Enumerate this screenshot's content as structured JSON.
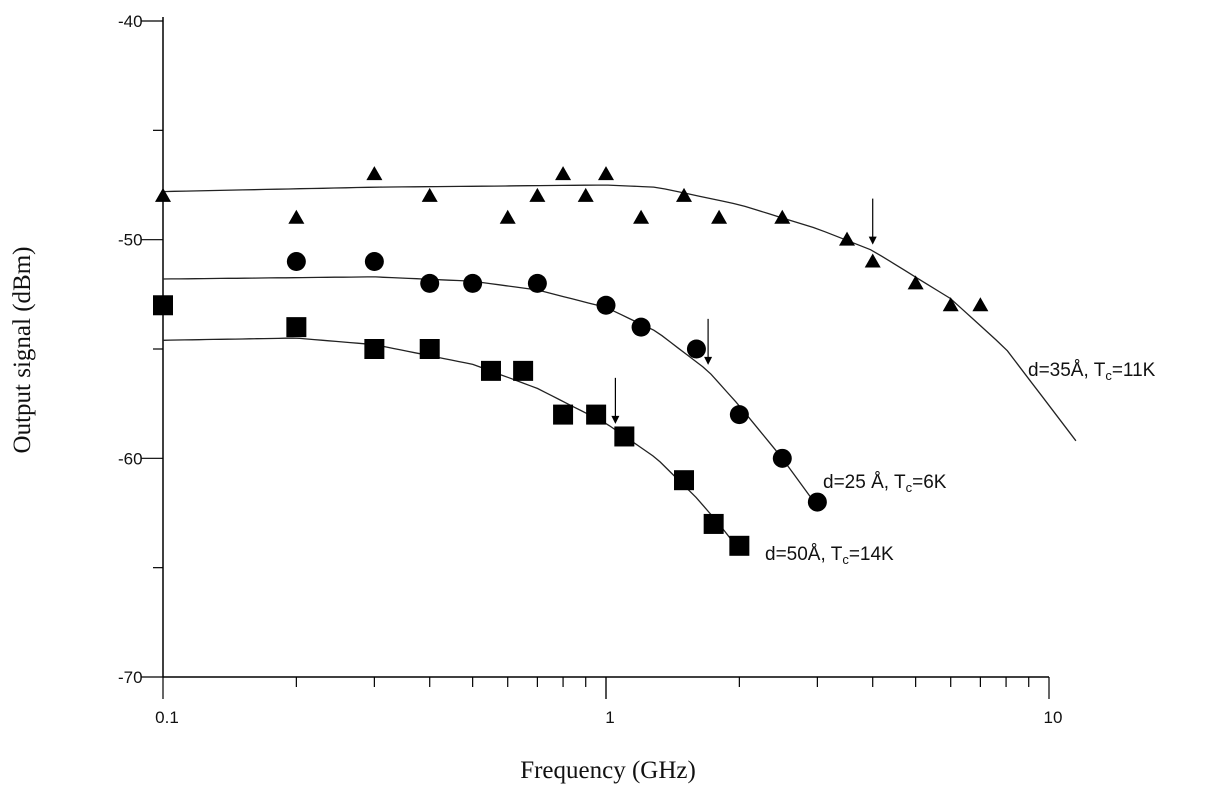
{
  "chart_data": {
    "type": "scatter",
    "title": "",
    "xlabel": "Frequency (GHz)",
    "ylabel": "Output signal (dBm)",
    "xscale": "log",
    "xlim": [
      0.1,
      10
    ],
    "ylim": [
      -70,
      -40
    ],
    "x_ticks": [
      {
        "value": 0.1,
        "label": "0.1"
      },
      {
        "value": 1,
        "label": "1"
      },
      {
        "value": 10,
        "label": "10"
      }
    ],
    "y_ticks": [
      {
        "value": -40,
        "label": "-40"
      },
      {
        "value": -50,
        "label": "-50"
      },
      {
        "value": -60,
        "label": "-60"
      },
      {
        "value": -70,
        "label": "-70"
      }
    ],
    "grid": false,
    "series": [
      {
        "name": "d=35Å, Tc=11K",
        "marker": "triangle",
        "color": "#000000",
        "x": [
          0.1,
          0.2,
          0.3,
          0.4,
          0.6,
          0.7,
          0.8,
          0.9,
          1.0,
          1.2,
          1.5,
          1.8,
          2.5,
          3.5,
          4.0,
          5.0,
          6.0,
          7.0
        ],
        "y": [
          -48,
          -49,
          -47,
          -48,
          -49,
          -48,
          -47,
          -48,
          -47,
          -49,
          -48,
          -49,
          -49,
          -50,
          -51,
          -52,
          -53,
          -53
        ],
        "fit": {
          "x": [
            0.1,
            0.3,
            1.0,
            1.3,
            2.0,
            3.0,
            4.0,
            6.0,
            8.0,
            11.5
          ],
          "y": [
            -47.8,
            -47.6,
            -47.5,
            -47.6,
            -48.4,
            -49.5,
            -50.5,
            -52.7,
            -55.0,
            -59.2
          ]
        },
        "cutoff_marker_x": 4.0
      },
      {
        "name": "d=25Å, Tc=6K",
        "marker": "circle",
        "color": "#000000",
        "x": [
          0.2,
          0.3,
          0.4,
          0.5,
          0.7,
          1.0,
          1.2,
          1.6,
          2.0,
          2.5,
          3.0
        ],
        "y": [
          -51,
          -51,
          -52,
          -52,
          -52,
          -53,
          -54,
          -55,
          -58,
          -60,
          -62
        ],
        "fit": {
          "x": [
            0.1,
            0.3,
            0.5,
            0.7,
            1.0,
            1.3,
            1.7,
            2.0,
            2.5,
            3.0
          ],
          "y": [
            -51.8,
            -51.7,
            -51.9,
            -52.3,
            -53.1,
            -54.2,
            -56.0,
            -57.6,
            -60.0,
            -62.2
          ]
        },
        "cutoff_marker_x": 1.7
      },
      {
        "name": "d=50Å, Tc=14K",
        "marker": "square",
        "color": "#000000",
        "x": [
          0.1,
          0.2,
          0.3,
          0.4,
          0.55,
          0.65,
          0.8,
          0.95,
          1.1,
          1.5,
          1.75,
          2.0
        ],
        "y": [
          -53,
          -54,
          -55,
          -55,
          -56,
          -56,
          -58,
          -58,
          -59,
          -61,
          -63,
          -64
        ],
        "fit": {
          "x": [
            0.1,
            0.2,
            0.3,
            0.5,
            0.7,
            1.0,
            1.3,
            1.6,
            1.8,
            2.0
          ],
          "y": [
            -54.6,
            -54.5,
            -54.8,
            -55.7,
            -56.8,
            -58.4,
            -60.0,
            -61.8,
            -63.0,
            -64.2
          ]
        },
        "cutoff_marker_x": 1.05
      }
    ],
    "annotations": [
      {
        "series": 0,
        "d_text": "d=35",
        "angstrom": "Å",
        "tc_text": ", T",
        "tc_sub": "c",
        "tc_val": "=11K"
      },
      {
        "series": 1,
        "d_text": "d=25 ",
        "angstrom": "Å",
        "tc_text": ", T",
        "tc_sub": "c",
        "tc_val": "=6K"
      },
      {
        "series": 2,
        "d_text": "d=50",
        "angstrom": "Å",
        "tc_text": ", T",
        "tc_sub": "c",
        "tc_val": "=14K"
      }
    ]
  }
}
